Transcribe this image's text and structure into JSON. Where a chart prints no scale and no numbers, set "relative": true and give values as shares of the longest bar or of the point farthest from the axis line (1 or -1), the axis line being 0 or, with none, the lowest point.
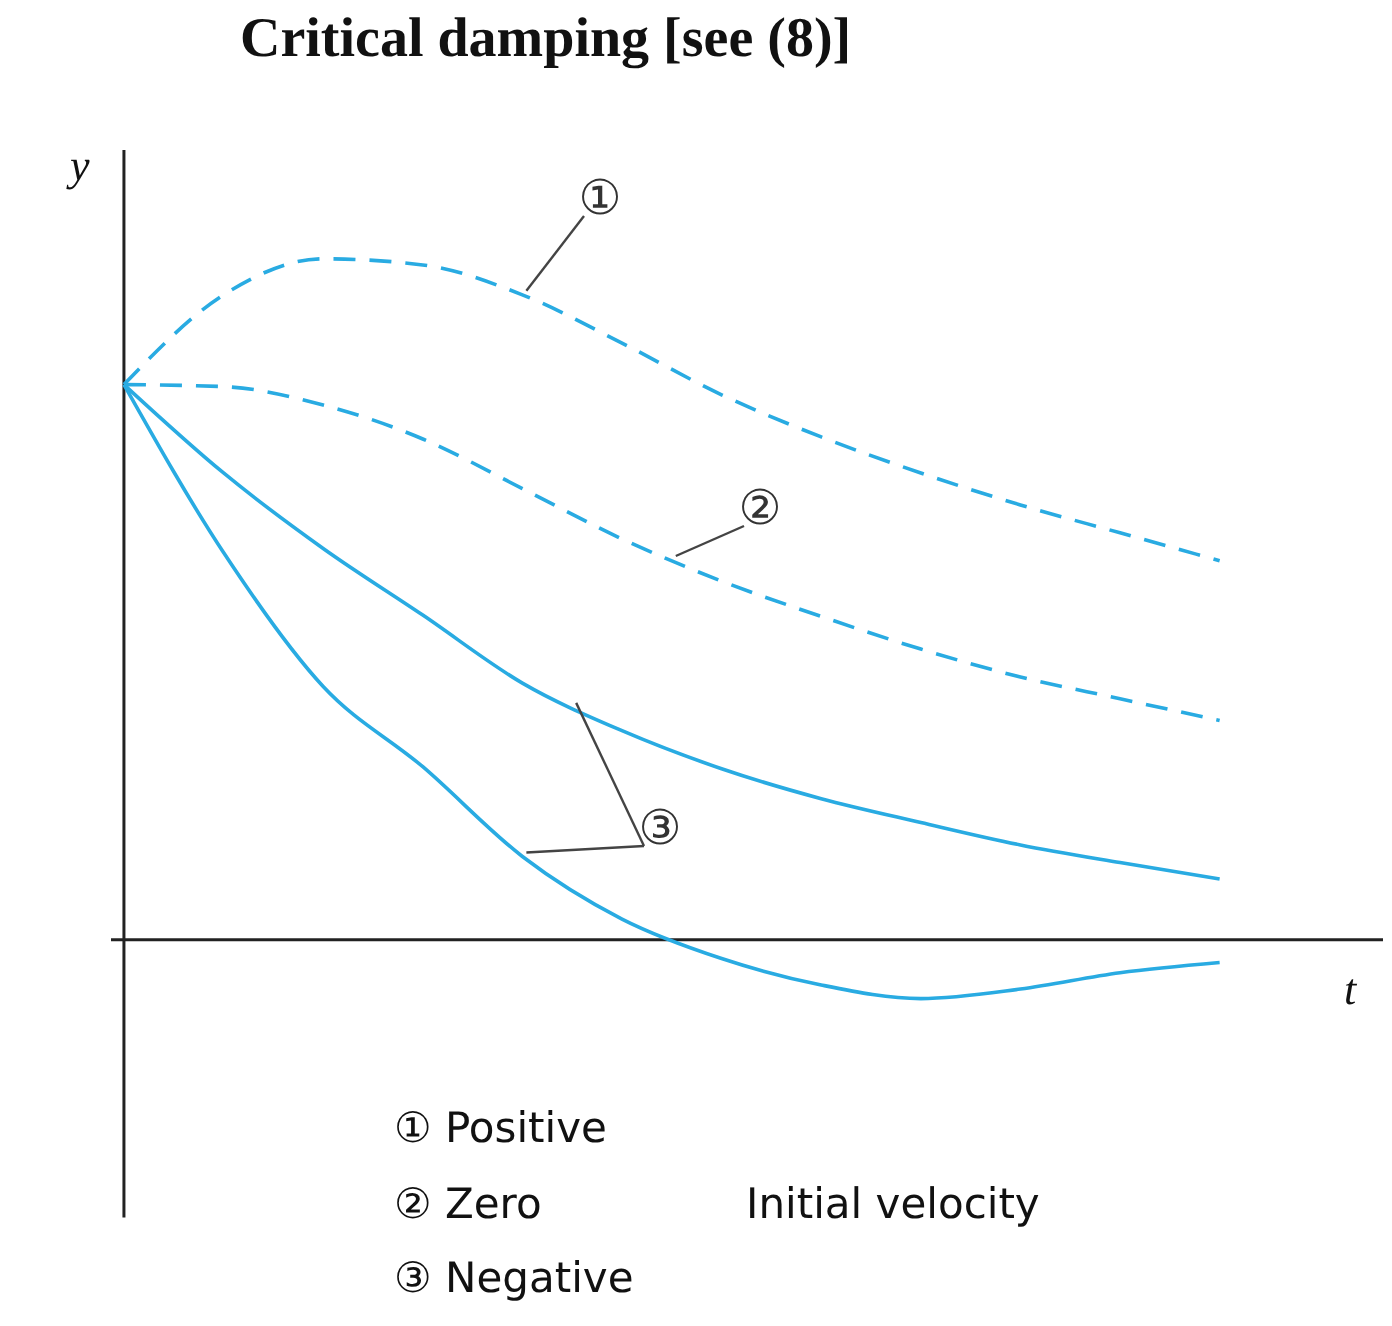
{
  "chart_data": {
    "type": "line",
    "title": "Critical damping [see (8)]",
    "xlabel": "t",
    "ylabel": "y",
    "relative": true,
    "categories": [
      null,
      null,
      null,
      null,
      null,
      null,
      null,
      null,
      null,
      null,
      null,
      null
    ],
    "series": [
      {
        "name": "①",
        "color": "#29abe2",
        "line_style": "dashed",
        "values": [
          0.815,
          0.947,
          1,
          0.991,
          0.947,
          0.876,
          0.8,
          0.738,
          0.685,
          0.638,
          0.597,
          0.556
        ]
      },
      {
        "name": "②",
        "color": "#29abe2",
        "line_style": "dashed",
        "values": [
          0.815,
          0.812,
          0.785,
          0.735,
          0.662,
          0.588,
          0.526,
          0.474,
          0.426,
          0.385,
          0.353,
          0.321
        ]
      },
      {
        "name": "③",
        "color": "#29abe2",
        "line_style": "solid",
        "values": [
          0.815,
          0.685,
          0.574,
          0.476,
          0.376,
          0.306,
          0.25,
          0.206,
          0.171,
          0.138,
          0.112,
          0.088
        ]
      },
      {
        "color": "#29abe2",
        "line_style": "solid",
        "values": [
          0.815,
          0.568,
          0.371,
          0.253,
          0.121,
          0.029,
          -0.029,
          -0.068,
          -0.088,
          -0.074,
          -0.05,
          -0.035
        ]
      }
    ],
    "annotations": [
      "① Positive",
      "② Zero",
      "③ Negative",
      "Initial velocity"
    ],
    "grid": false,
    "marker": "none"
  }
}
